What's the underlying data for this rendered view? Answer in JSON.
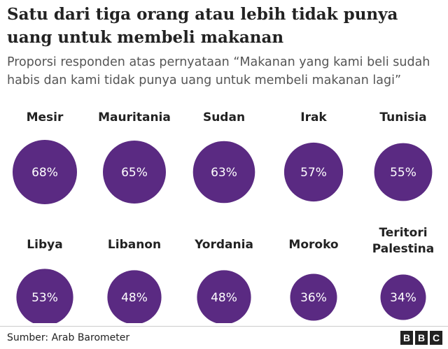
{
  "header": {
    "title": "Satu dari tiga orang atau lebih tidak punya uang untuk membeli makanan",
    "subtitle": "Proporsi responden atas pernyataan “Makanan yang kami beli sudah habis dan kami tidak punya uang untuk membeli makanan lagi”"
  },
  "footer": {
    "source": "Sumber: Arab Barometer",
    "logo_letters": [
      "B",
      "B",
      "C"
    ]
  },
  "colors": {
    "bubble": "#5a2a82",
    "bubble_text": "#ffffff"
  },
  "chart_data": {
    "type": "bubble",
    "unit": "%",
    "categories": [
      [
        "Mesir"
      ],
      [
        "Mauritania"
      ],
      [
        "Sudan"
      ],
      [
        "Irak"
      ],
      [
        "Tunisia"
      ],
      [
        "Libya"
      ],
      [
        "Libanon"
      ],
      [
        "Yordania"
      ],
      [
        "Moroko"
      ],
      [
        "Teritori",
        "Palestina"
      ]
    ],
    "values": [
      68,
      65,
      63,
      57,
      55,
      53,
      48,
      48,
      36,
      34
    ],
    "value_labels": [
      "68%",
      "65%",
      "63%",
      "57%",
      "55%",
      "53%",
      "48%",
      "48%",
      "36%",
      "34%"
    ]
  }
}
